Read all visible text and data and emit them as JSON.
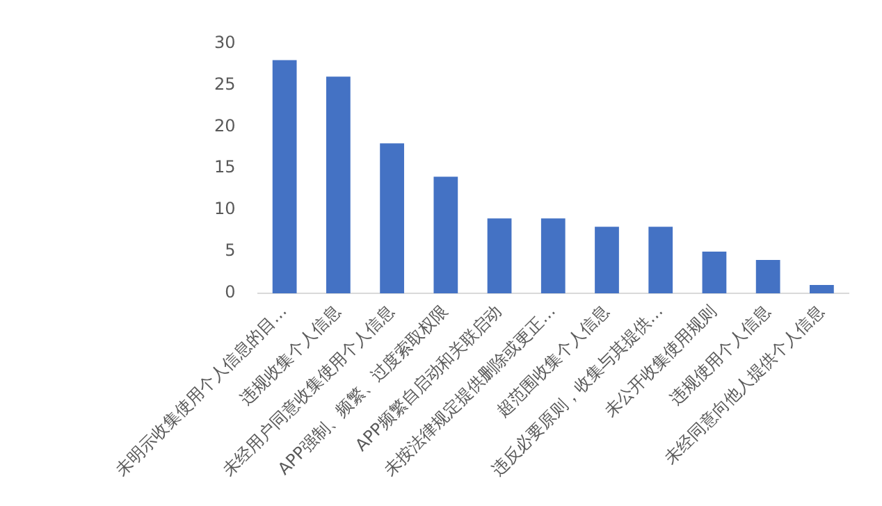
{
  "chart_data": {
    "type": "bar",
    "categories": [
      "未明示收集使用个人信息的目…",
      "违规收集个人信息",
      "未经用户同意收集使用个人信息",
      "APP强制、频繁、过度索取权限",
      "APP频繁自启动和关联启动",
      "未按法律规定提供删除或更正…",
      "超范围收集个人信息",
      "违反必要原则，收集与其提供…",
      "未公开收集使用规则",
      "违规使用个人信息",
      "未经同意向他人提供个人信息"
    ],
    "values": [
      28,
      26,
      18,
      14,
      9,
      9,
      8,
      8,
      5,
      4,
      1
    ],
    "color": "#4472c4",
    "ylim": [
      0,
      30
    ],
    "yticks": [
      0,
      5,
      10,
      15,
      20,
      25,
      30
    ],
    "grid": false,
    "legend": false
  }
}
